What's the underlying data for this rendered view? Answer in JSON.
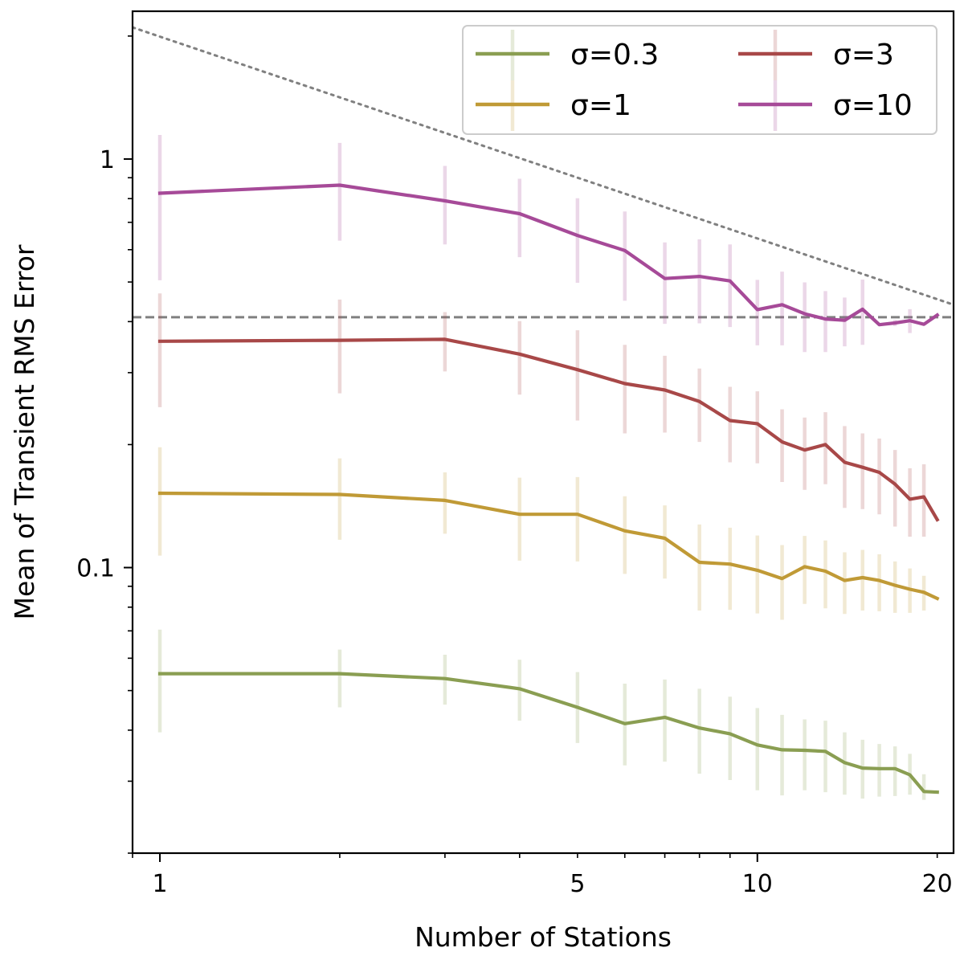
{
  "chart_data": {
    "type": "line",
    "title": "",
    "xlabel": "Number of Stations",
    "ylabel": "Mean of Transient RMS Error",
    "xscale": "log",
    "yscale": "log",
    "xlim": [
      0.9,
      21.3
    ],
    "ylim": [
      0.02,
      2.3
    ],
    "xticks": [
      {
        "value": 1,
        "label": "1"
      },
      {
        "value": 5,
        "label": "5"
      },
      {
        "value": 10,
        "label": "10"
      },
      {
        "value": 20,
        "label": "20"
      }
    ],
    "yticks": [
      {
        "value": 0.1,
        "label": "0.1"
      },
      {
        "value": 1,
        "label": "1"
      }
    ],
    "grid": false,
    "legend": {
      "placement": "top-right",
      "columns": 2
    },
    "x": [
      1,
      2,
      3,
      4,
      5,
      6,
      7,
      8,
      9,
      10,
      11,
      12,
      13,
      14,
      15,
      16,
      17,
      18,
      19,
      20
    ],
    "series": [
      {
        "name": "σ=0.3",
        "color": "#8a9e52",
        "values": [
          0.055,
          0.055,
          0.0535,
          0.0505,
          0.0455,
          0.0415,
          0.043,
          0.0405,
          0.0392,
          0.0368,
          0.0358,
          0.0357,
          0.0355,
          0.0333,
          0.0323,
          0.0322,
          0.0322,
          0.0311,
          0.0283,
          0.0282
        ],
        "err_low": [
          0.0395,
          0.0455,
          0.0462,
          0.0422,
          0.0372,
          0.0328,
          0.0335,
          0.0313,
          0.0302,
          0.0285,
          0.0277,
          0.0285,
          0.0282,
          0.0278,
          0.0272,
          0.0275,
          0.0276,
          0.0278,
          0.027,
          0.028
        ],
        "err_high": [
          0.0705,
          0.063,
          0.0612,
          0.0595,
          0.0555,
          0.052,
          0.0532,
          0.0505,
          0.0483,
          0.0453,
          0.0436,
          0.0425,
          0.0422,
          0.0395,
          0.0379,
          0.037,
          0.0365,
          0.035,
          0.0312,
          0.0285
        ]
      },
      {
        "name": "σ=1",
        "color": "#c09a36",
        "values": [
          0.152,
          0.151,
          0.146,
          0.135,
          0.135,
          0.123,
          0.118,
          0.103,
          0.102,
          0.0985,
          0.094,
          0.1005,
          0.098,
          0.093,
          0.0945,
          0.093,
          0.0905,
          0.0885,
          0.087,
          0.084
        ],
        "err_low": [
          0.107,
          0.117,
          0.121,
          0.104,
          0.1035,
          0.0965,
          0.094,
          0.0785,
          0.0788,
          0.0772,
          0.0745,
          0.0815,
          0.0795,
          0.077,
          0.0785,
          0.0782,
          0.0775,
          0.0775,
          0.0785,
          0.084
        ],
        "err_high": [
          0.197,
          0.185,
          0.171,
          0.166,
          0.1665,
          0.1495,
          0.142,
          0.1275,
          0.1252,
          0.1198,
          0.1135,
          0.1195,
          0.1165,
          0.109,
          0.1105,
          0.1078,
          0.1035,
          0.0995,
          0.0955,
          0.084
        ]
      },
      {
        "name": "σ=3",
        "color": "#a84848",
        "values": [
          0.358,
          0.36,
          0.362,
          0.333,
          0.305,
          0.282,
          0.272,
          0.255,
          0.229,
          0.225,
          0.203,
          0.194,
          0.2,
          0.181,
          0.176,
          0.171,
          0.16,
          0.147,
          0.149,
          0.131
        ],
        "err_low": [
          0.247,
          0.267,
          0.302,
          0.265,
          0.229,
          0.213,
          0.214,
          0.203,
          0.181,
          0.18,
          0.162,
          0.155,
          0.16,
          0.14,
          0.139,
          0.135,
          0.126,
          0.119,
          0.119,
          0.131
        ],
        "err_high": [
          0.469,
          0.453,
          0.422,
          0.401,
          0.381,
          0.351,
          0.33,
          0.307,
          0.277,
          0.27,
          0.244,
          0.233,
          0.24,
          0.222,
          0.213,
          0.207,
          0.194,
          0.175,
          0.179,
          0.131
        ]
      },
      {
        "name": "σ=10",
        "color": "#a64a98",
        "values": [
          0.825,
          0.863,
          0.79,
          0.735,
          0.65,
          0.597,
          0.51,
          0.516,
          0.503,
          0.428,
          0.44,
          0.418,
          0.406,
          0.403,
          0.429,
          0.393,
          0.397,
          0.402,
          0.394,
          0.415
        ],
        "err_low": [
          0.505,
          0.631,
          0.618,
          0.575,
          0.498,
          0.45,
          0.395,
          0.396,
          0.388,
          0.35,
          0.35,
          0.337,
          0.337,
          0.348,
          0.351,
          0.396,
          0.39,
          0.375,
          0.395,
          0.415
        ],
        "err_high": [
          1.145,
          1.095,
          0.962,
          0.895,
          0.802,
          0.744,
          0.625,
          0.636,
          0.618,
          0.506,
          0.53,
          0.499,
          0.475,
          0.458,
          0.507,
          0.39,
          0.404,
          0.429,
          0.393,
          0.415
        ]
      }
    ],
    "reference_lines": [
      {
        "kind": "dotted",
        "style": "dotted",
        "color": "#808080",
        "x_range": [
          0.9,
          21.3
        ],
        "y_at_x_range": [
          2.1,
          0.44
        ]
      },
      {
        "kind": "dashed",
        "style": "dashed",
        "color": "#808080",
        "y": 0.41
      }
    ]
  }
}
